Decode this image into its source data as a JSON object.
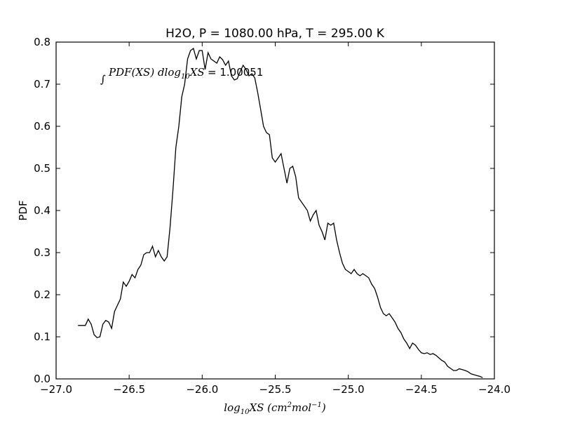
{
  "chart_data": {
    "type": "line",
    "title": "H2O, P = 1080.00 hPa, T = 295.00 K",
    "xlabel": "log10XS (cm2mol-1)",
    "xlabel_parts": {
      "lead": "log",
      "sub": "10",
      "xs": "XS (cm",
      "sup1": "2",
      "mol": "mol",
      "sup2": "−1",
      "close": ")"
    },
    "ylabel": "PDF",
    "xlim": [
      -27.0,
      -24.0
    ],
    "ylim": [
      0.0,
      0.8
    ],
    "xticks": [
      -27.0,
      -26.5,
      -26.0,
      -25.5,
      -25.0,
      -24.5,
      -24.0
    ],
    "xtick_labels": [
      "−27.0",
      "−26.5",
      "−26.0",
      "−25.5",
      "−25.0",
      "−24.5",
      "−24.0"
    ],
    "yticks": [
      0.0,
      0.1,
      0.2,
      0.3,
      0.4,
      0.5,
      0.6,
      0.7,
      0.8
    ],
    "ytick_labels": [
      "0.0",
      "0.1",
      "0.2",
      "0.3",
      "0.4",
      "0.5",
      "0.6",
      "0.7",
      "0.8"
    ],
    "grid": false,
    "line_color": "#000000",
    "annotation": {
      "integral_sign": "∫",
      "integrand": "PDF(XS) dlog",
      "sub": "10",
      "tail": "XS",
      "equals": " = ",
      "value": "1.00051"
    },
    "series": [
      {
        "x": [
          -26.85,
          -26.8,
          -26.78,
          -26.76,
          -26.74,
          -26.72,
          -26.7,
          -26.68,
          -26.66,
          -26.64,
          -26.62,
          -26.6,
          -26.58,
          -26.56,
          -26.54,
          -26.52,
          -26.5,
          -26.48,
          -26.46,
          -26.44,
          -26.42,
          -26.4,
          -26.38,
          -26.36,
          -26.34,
          -26.32,
          -26.3,
          -26.28,
          -26.26,
          -26.24,
          -26.22,
          -26.2,
          -26.18,
          -26.16,
          -26.14,
          -26.12,
          -26.1,
          -26.08,
          -26.06,
          -26.04,
          -26.02,
          -26.0,
          -25.98,
          -25.96,
          -25.94,
          -25.92,
          -25.9,
          -25.88,
          -25.86,
          -25.84,
          -25.82,
          -25.8,
          -25.78,
          -25.76,
          -25.74,
          -25.72,
          -25.7,
          -25.68,
          -25.66,
          -25.64,
          -25.62,
          -25.6,
          -25.58,
          -25.56,
          -25.54,
          -25.52,
          -25.5,
          -25.48,
          -25.46,
          -25.44,
          -25.42,
          -25.4,
          -25.38,
          -25.36,
          -25.34,
          -25.32,
          -25.3,
          -25.28,
          -25.26,
          -25.24,
          -25.22,
          -25.2,
          -25.18,
          -25.16,
          -25.14,
          -25.12,
          -25.1,
          -25.08,
          -25.06,
          -25.04,
          -25.02,
          -25.0,
          -24.98,
          -24.96,
          -24.94,
          -24.92,
          -24.9,
          -24.88,
          -24.86,
          -24.84,
          -24.82,
          -24.8,
          -24.78,
          -24.76,
          -24.74,
          -24.72,
          -24.7,
          -24.68,
          -24.66,
          -24.64,
          -24.62,
          -24.6,
          -24.58,
          -24.56,
          -24.54,
          -24.52,
          -24.5,
          -24.48,
          -24.46,
          -24.44,
          -24.42,
          -24.4,
          -24.38,
          -24.36,
          -24.34,
          -24.32,
          -24.3,
          -24.28,
          -24.26,
          -24.24,
          -24.22,
          -24.2,
          -24.18,
          -24.16,
          -24.14,
          -24.12,
          -24.1,
          -24.08
        ],
        "y": [
          0.127,
          0.127,
          0.142,
          0.13,
          0.105,
          0.098,
          0.1,
          0.13,
          0.139,
          0.135,
          0.12,
          0.16,
          0.175,
          0.19,
          0.23,
          0.22,
          0.232,
          0.248,
          0.24,
          0.26,
          0.27,
          0.295,
          0.3,
          0.3,
          0.315,
          0.29,
          0.305,
          0.29,
          0.28,
          0.29,
          0.36,
          0.45,
          0.55,
          0.6,
          0.67,
          0.7,
          0.76,
          0.78,
          0.785,
          0.76,
          0.78,
          0.78,
          0.735,
          0.775,
          0.76,
          0.755,
          0.75,
          0.765,
          0.758,
          0.745,
          0.755,
          0.72,
          0.71,
          0.713,
          0.73,
          0.745,
          0.735,
          0.72,
          0.725,
          0.715,
          0.68,
          0.64,
          0.6,
          0.585,
          0.58,
          0.525,
          0.515,
          0.525,
          0.535,
          0.5,
          0.465,
          0.5,
          0.505,
          0.48,
          0.43,
          0.42,
          0.41,
          0.4,
          0.375,
          0.39,
          0.4,
          0.365,
          0.35,
          0.33,
          0.37,
          0.365,
          0.37,
          0.33,
          0.3,
          0.275,
          0.26,
          0.255,
          0.25,
          0.26,
          0.25,
          0.245,
          0.25,
          0.245,
          0.24,
          0.225,
          0.215,
          0.195,
          0.17,
          0.155,
          0.15,
          0.155,
          0.145,
          0.135,
          0.12,
          0.11,
          0.095,
          0.085,
          0.072,
          0.085,
          0.08,
          0.07,
          0.062,
          0.06,
          0.062,
          0.058,
          0.06,
          0.056,
          0.05,
          0.044,
          0.04,
          0.03,
          0.025,
          0.02,
          0.02,
          0.024,
          0.022,
          0.02,
          0.017,
          0.012,
          0.01,
          0.008,
          0.006,
          0.003
        ]
      }
    ]
  }
}
